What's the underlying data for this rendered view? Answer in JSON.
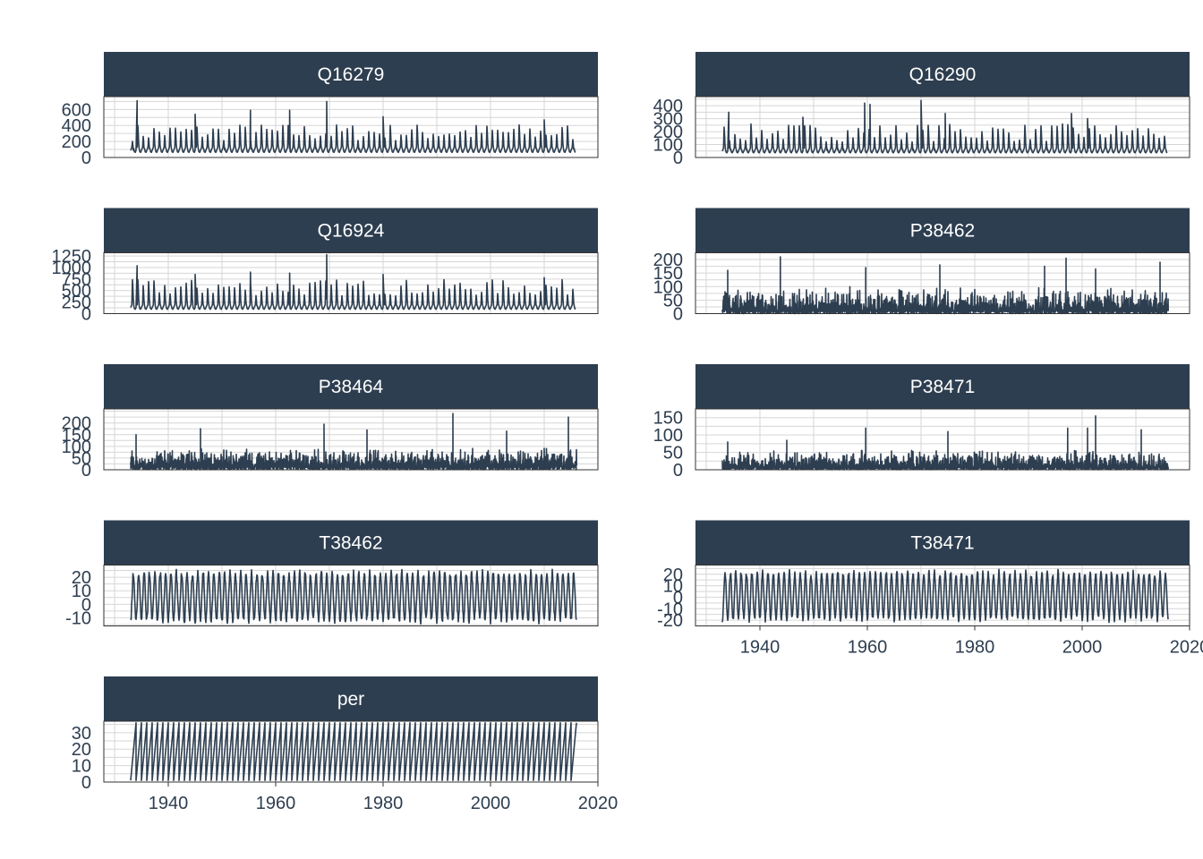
{
  "chart_data": {
    "type": "line",
    "layout": "facet-grid, 2 columns, 5 rows, free y scales",
    "colors": {
      "strip_bg": "#2d3e50",
      "line": "#2d3e50",
      "grid": "#d6d6d6",
      "strip_text": "#ffffff"
    },
    "x_axis": {
      "range": [
        1928,
        2020
      ],
      "ticks": [
        1940,
        1960,
        1980,
        2000,
        2020
      ],
      "data_start": 1933.0,
      "data_end": 2016.0
    },
    "panels": [
      {
        "name": "Q16279",
        "y_range": [
          0,
          760
        ],
        "y_ticks": [
          0,
          200,
          400,
          600
        ],
        "pattern": "flow",
        "base": 80,
        "peak_min": 200,
        "peak_max": 420,
        "spikes": [
          [
            1934.2,
            710
          ],
          [
            1945.0,
            540
          ],
          [
            1955.3,
            590
          ],
          [
            1962.6,
            590
          ],
          [
            1969.5,
            700
          ],
          [
            1980.0,
            510
          ],
          [
            2010.0,
            470
          ]
        ]
      },
      {
        "name": "Q16290",
        "y_range": [
          0,
          470
        ],
        "y_ticks": [
          0,
          100,
          200,
          300,
          400
        ],
        "pattern": "flow",
        "base": 45,
        "peak_min": 120,
        "peak_max": 260,
        "spikes": [
          [
            1934.2,
            350
          ],
          [
            1948.0,
            310
          ],
          [
            1959.5,
            420
          ],
          [
            1960.5,
            410
          ],
          [
            1970.0,
            440
          ],
          [
            1974.5,
            340
          ],
          [
            1998.0,
            340
          ],
          [
            2001.0,
            300
          ]
        ]
      },
      {
        "name": "Q16924",
        "y_range": [
          0,
          1320
        ],
        "y_ticks": [
          0,
          250,
          500,
          750,
          1000,
          1250
        ],
        "pattern": "flow",
        "base": 120,
        "peak_min": 380,
        "peak_max": 740,
        "spikes": [
          [
            1934.2,
            1040
          ],
          [
            1945.0,
            850
          ],
          [
            1955.3,
            900
          ],
          [
            1962.6,
            880
          ],
          [
            1969.5,
            1280
          ],
          [
            1980.0,
            850
          ],
          [
            2010.0,
            780
          ]
        ]
      },
      {
        "name": "P38462",
        "y_range": [
          0,
          225
        ],
        "y_ticks": [
          0,
          50,
          100,
          150,
          200
        ],
        "pattern": "precip",
        "base": 15,
        "peak_min": 30,
        "peak_max": 100,
        "spikes": [
          [
            1934.0,
            160
          ],
          [
            1943.8,
            210
          ],
          [
            1959.7,
            170
          ],
          [
            1973.5,
            180
          ],
          [
            1993.0,
            175
          ],
          [
            1997.0,
            205
          ],
          [
            2002.5,
            165
          ],
          [
            2014.5,
            190
          ]
        ]
      },
      {
        "name": "P38464",
        "y_range": [
          0,
          260
        ],
        "y_ticks": [
          0,
          50,
          100,
          150,
          200
        ],
        "pattern": "precip",
        "base": 18,
        "peak_min": 35,
        "peak_max": 100,
        "spikes": [
          [
            1934.0,
            150
          ],
          [
            1946.0,
            175
          ],
          [
            1969.0,
            195
          ],
          [
            1977.0,
            170
          ],
          [
            1993.0,
            240
          ],
          [
            2003.0,
            165
          ],
          [
            2014.5,
            225
          ]
        ]
      },
      {
        "name": "P38471",
        "y_range": [
          0,
          175
        ],
        "y_ticks": [
          0,
          50,
          100,
          150
        ],
        "pattern": "precip",
        "base": 10,
        "peak_min": 20,
        "peak_max": 60,
        "spikes": [
          [
            1934.0,
            80
          ],
          [
            1945.0,
            85
          ],
          [
            1959.7,
            120
          ],
          [
            1975.0,
            110
          ],
          [
            1997.3,
            120
          ],
          [
            2001.0,
            120
          ],
          [
            2002.5,
            155
          ],
          [
            2011.0,
            115
          ]
        ]
      },
      {
        "name": "T38462",
        "y_range": [
          -16,
          29
        ],
        "y_ticks": [
          -10,
          0,
          10,
          20
        ],
        "pattern": "temp",
        "base": 8,
        "peak_min": 22,
        "peak_max": 26,
        "low": -11
      },
      {
        "name": "T38471",
        "y_range": [
          -25,
          28
        ],
        "y_ticks": [
          -20,
          -10,
          0,
          10,
          20
        ],
        "pattern": "temp",
        "base": 5,
        "peak_min": 20,
        "peak_max": 24,
        "low": -18
      },
      {
        "name": "per",
        "y_range": [
          0,
          37
        ],
        "y_ticks": [
          0,
          10,
          20,
          30
        ],
        "pattern": "period",
        "base": 1,
        "peak_min": 36,
        "peak_max": 36
      }
    ]
  }
}
